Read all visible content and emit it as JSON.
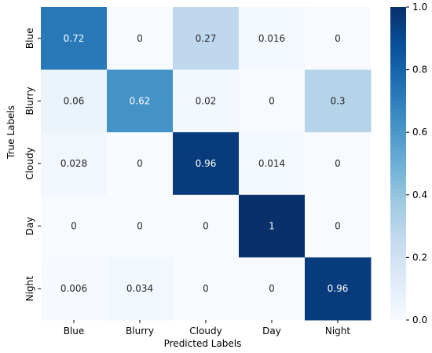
{
  "chart_data": {
    "type": "heatmap",
    "title": "",
    "xlabel": "Predicted Labels",
    "ylabel": "True Labels",
    "x_categories": [
      "Blue",
      "Blurry",
      "Cloudy",
      "Day",
      "Night"
    ],
    "y_categories": [
      "Blue",
      "Blurry",
      "Cloudy",
      "Day",
      "Night"
    ],
    "values": [
      [
        0.72,
        0,
        0.27,
        0.016,
        0
      ],
      [
        0.06,
        0.62,
        0.02,
        0,
        0.3
      ],
      [
        0.028,
        0,
        0.96,
        0.014,
        0
      ],
      [
        0,
        0,
        0,
        1,
        0
      ],
      [
        0.006,
        0.034,
        0,
        0,
        0.96
      ]
    ],
    "value_labels": [
      [
        "0.72",
        "0",
        "0.27",
        "0.016",
        "0"
      ],
      [
        "0.06",
        "0.62",
        "0.02",
        "0",
        "0.3"
      ],
      [
        "0.028",
        "0",
        "0.96",
        "0.014",
        "0"
      ],
      [
        "0",
        "0",
        "0",
        "1",
        "0"
      ],
      [
        "0.006",
        "0.034",
        "0",
        "0",
        "0.96"
      ]
    ],
    "colorbar": {
      "range": [
        0.0,
        1.0
      ],
      "ticks": [
        0.0,
        0.2,
        0.4,
        0.6,
        0.8,
        1.0
      ],
      "tick_labels": [
        "0.0",
        "0.2",
        "0.4",
        "0.6",
        "0.8",
        "1.0"
      ]
    },
    "colormap": "Blues"
  }
}
